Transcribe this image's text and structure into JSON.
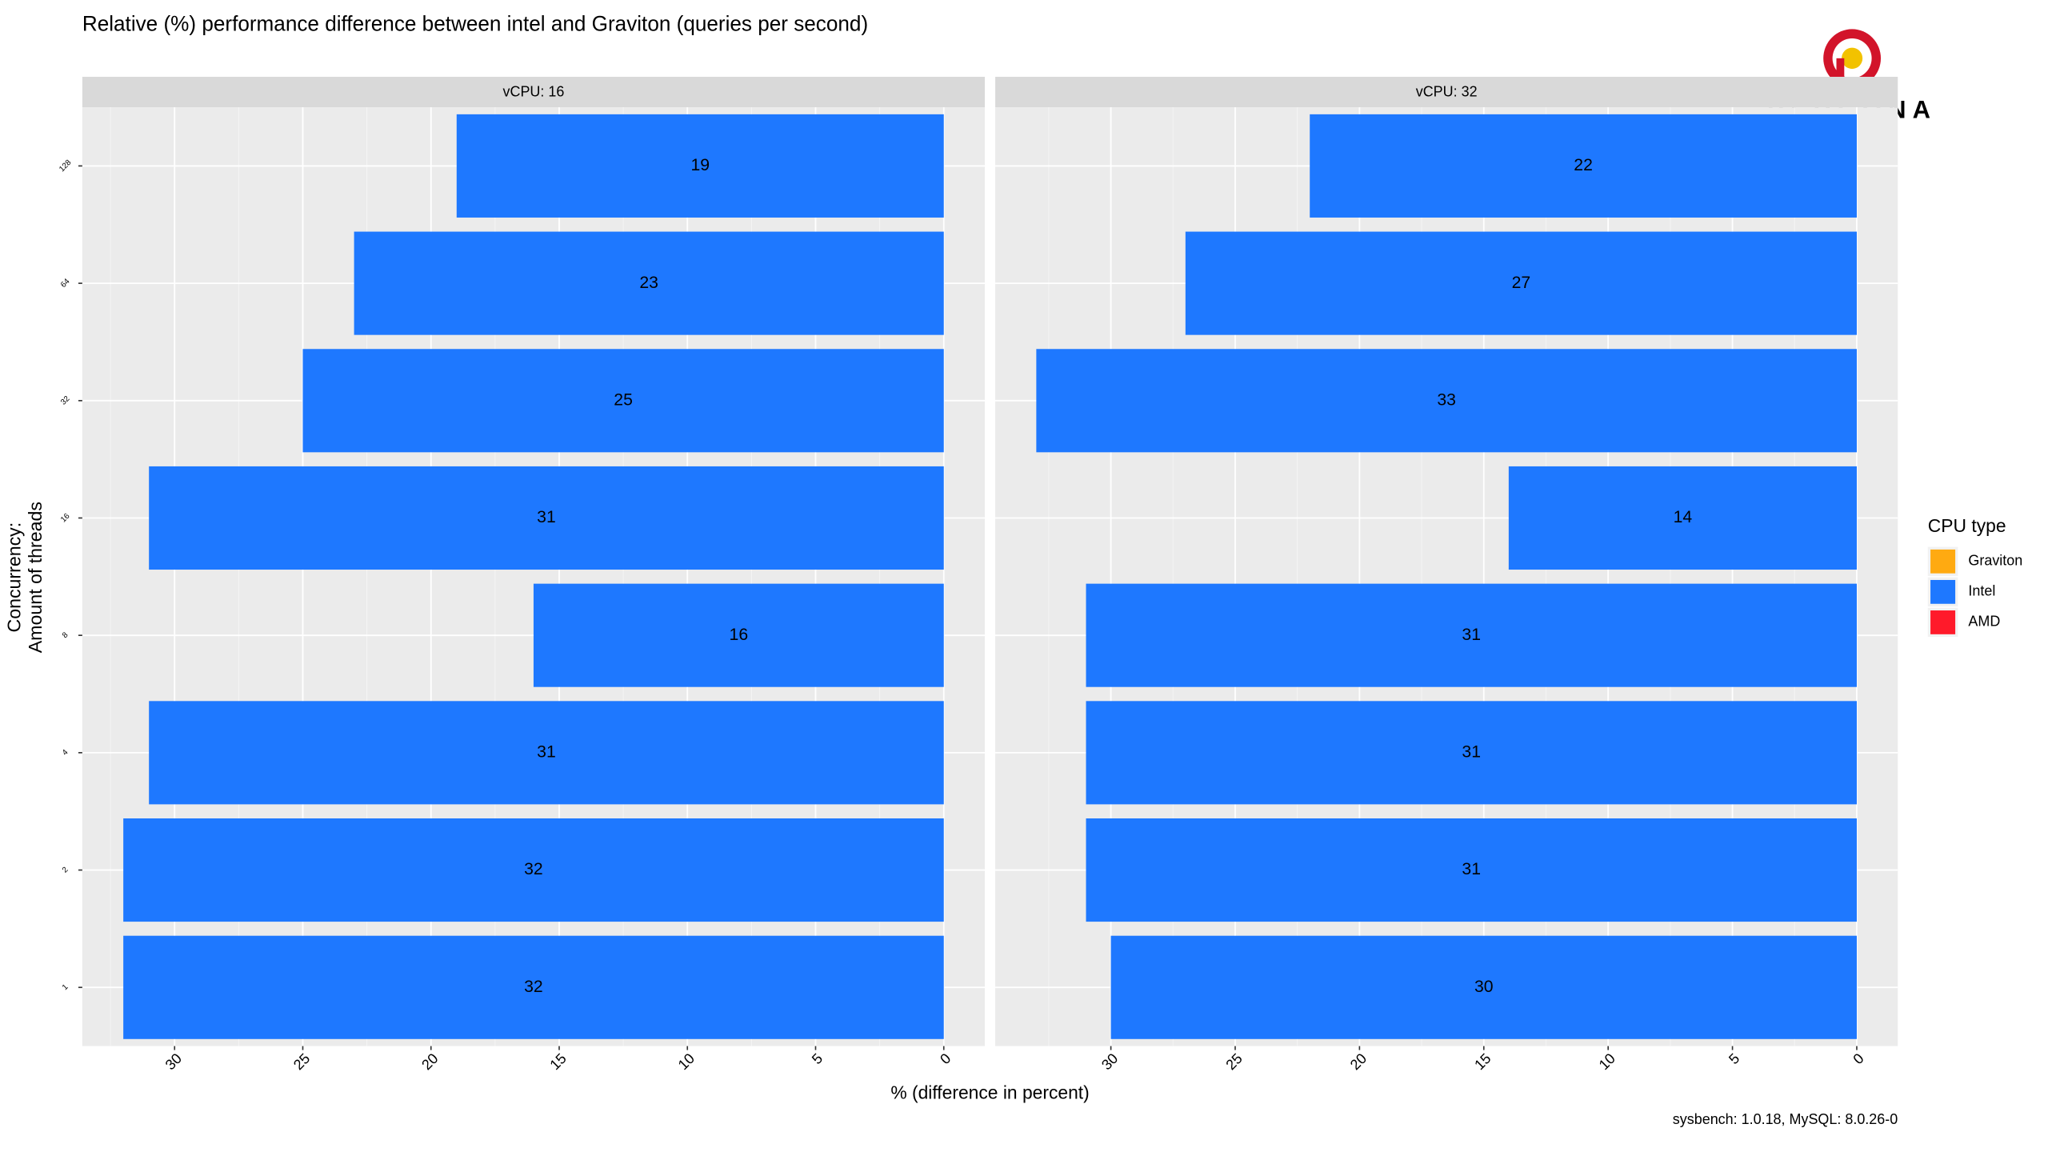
{
  "chart_data": {
    "type": "bar",
    "title": "Relative (%) performance difference between intel and Graviton (queries per second)",
    "x_label": "% (difference in percent)",
    "y_label": [
      "Concurrency:",
      "Amount of threads"
    ],
    "caption": "sysbench: 1.0.18, MySQL: 8.0.26-0",
    "logo_text": "PERCONA",
    "legend_title": "CPU type",
    "legend": [
      {
        "name": "Graviton",
        "color": "#ffaa11"
      },
      {
        "name": "Intel",
        "color": "#1e78ff"
      },
      {
        "name": "AMD",
        "color": "#ff1a2a"
      }
    ],
    "bar_color": "#1e78ff",
    "grid": true,
    "categories": [
      "128",
      "64",
      "32",
      "16",
      "8",
      "4",
      "2",
      "1"
    ],
    "xticks": [
      30,
      25,
      20,
      15,
      10,
      5,
      0
    ],
    "minor_xticks": [
      32.5,
      27.5,
      22.5,
      17.5,
      12.5,
      7.5,
      2.5
    ],
    "facets": [
      {
        "title": "vCPU: 16",
        "xlim": [
          33.6,
          -1.6
        ],
        "values": [
          19,
          23,
          25,
          31,
          16,
          31,
          32,
          32
        ]
      },
      {
        "title": "vCPU: 32",
        "xlim": [
          34.65,
          -1.65
        ],
        "values": [
          22,
          27,
          33,
          14,
          31,
          31,
          31,
          30
        ]
      }
    ]
  }
}
